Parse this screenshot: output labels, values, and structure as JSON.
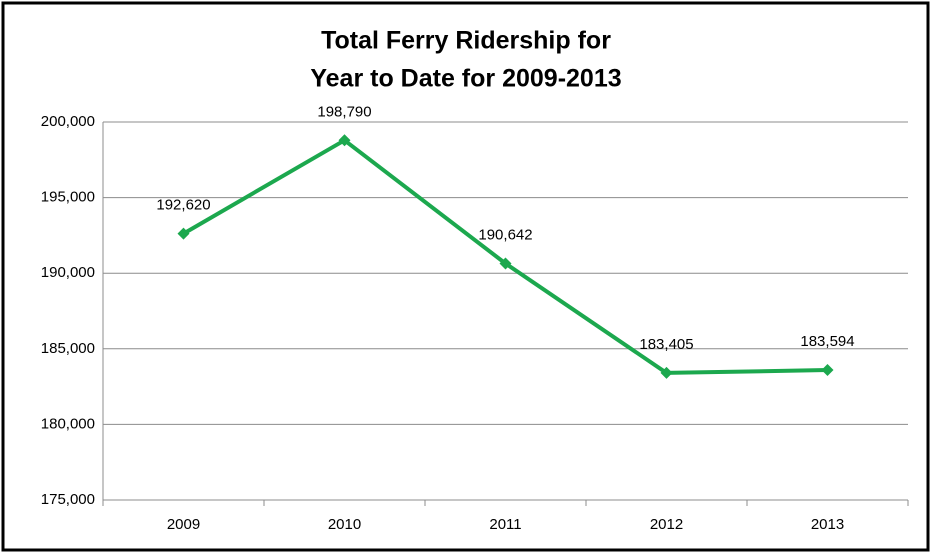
{
  "chart_data": {
    "type": "line",
    "title": [
      "Total Ferry Ridership for",
      "Year to Date for 2009-2013"
    ],
    "categories": [
      "2009",
      "2010",
      "2011",
      "2012",
      "2013"
    ],
    "series": [
      {
        "name": "Total Ferry Ridership",
        "color": "#1ca84e",
        "values": [
          192620,
          198790,
          190642,
          183405,
          183594
        ],
        "value_labels": [
          "192,620",
          "198,790",
          "190,642",
          "183,405",
          "183,594"
        ]
      }
    ],
    "ylim": [
      175000,
      200000
    ],
    "yticks": [
      {
        "value": 175000,
        "label": "175,000"
      },
      {
        "value": 180000,
        "label": "180,000"
      },
      {
        "value": 185000,
        "label": "185,000"
      },
      {
        "value": 190000,
        "label": "190,000"
      },
      {
        "value": 195000,
        "label": "195,000"
      },
      {
        "value": 200000,
        "label": "200,000"
      }
    ],
    "grid": true
  }
}
